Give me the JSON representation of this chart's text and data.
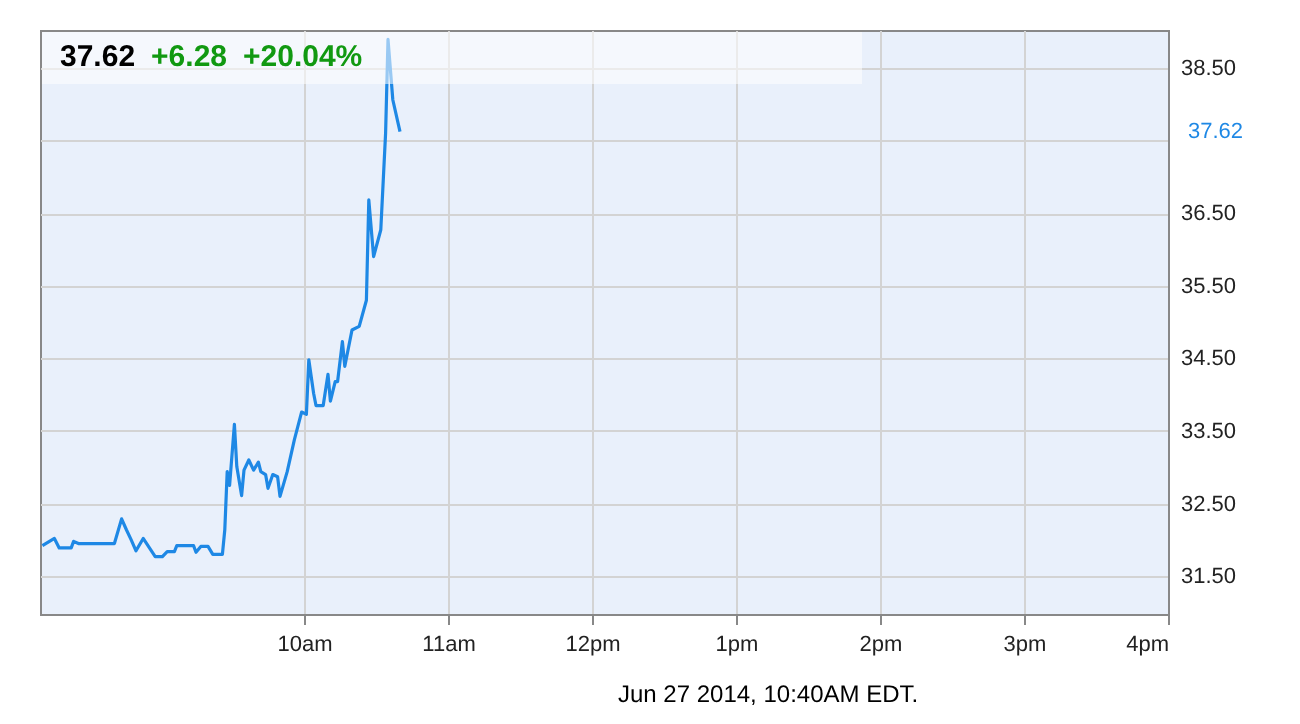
{
  "chart_data": {
    "type": "line",
    "title": "37.62",
    "annotations": [
      "+6.28",
      "+20.04%",
      "37.62",
      "Jun 27 2014, 10:40AM EDT."
    ],
    "x": [
      "2014-06-27T08:11",
      "2014-06-27T08:16",
      "2014-06-27T08:18",
      "2014-06-27T08:23",
      "2014-06-27T08:24",
      "2014-06-27T08:26",
      "2014-06-27T08:41",
      "2014-06-27T08:44",
      "2014-06-27T08:46",
      "2014-06-27T08:48",
      "2014-06-27T08:50",
      "2014-06-27T08:53",
      "2014-06-27T08:58",
      "2014-06-27T09:01",
      "2014-06-27T09:03",
      "2014-06-27T09:06",
      "2014-06-27T09:07",
      "2014-06-27T09:14",
      "2014-06-27T09:15",
      "2014-06-27T09:17",
      "2014-06-27T09:20",
      "2014-06-27T09:22",
      "2014-06-27T09:26",
      "2014-06-27T09:27",
      "2014-06-27T09:28",
      "2014-06-27T09:29",
      "2014-06-27T09:31",
      "2014-06-27T09:32",
      "2014-06-27T09:34",
      "2014-06-27T09:35",
      "2014-06-27T09:37",
      "2014-06-27T09:39",
      "2014-06-27T09:41",
      "2014-06-27T09:42",
      "2014-06-27T09:44",
      "2014-06-27T09:45",
      "2014-06-27T09:47",
      "2014-06-27T09:49",
      "2014-06-27T09:50",
      "2014-06-27T09:53",
      "2014-06-27T09:56",
      "2014-06-27T09:59",
      "2014-06-27T10:01",
      "2014-06-27T10:02",
      "2014-06-27T10:04",
      "2014-06-27T10:05",
      "2014-06-27T10:08",
      "2014-06-27T10:10",
      "2014-06-27T10:11",
      "2014-06-27T10:13",
      "2014-06-27T10:14",
      "2014-06-27T10:16",
      "2014-06-27T10:17",
      "2014-06-27T10:20",
      "2014-06-27T10:23",
      "2014-06-27T10:26",
      "2014-06-27T10:27",
      "2014-06-27T10:29",
      "2014-06-27T10:32",
      "2014-06-27T10:34",
      "2014-06-27T10:35",
      "2014-06-27T10:37",
      "2014-06-27T10:40"
    ],
    "series": [
      {
        "color": "#1e88e5",
        "values": [
          31.92,
          32.02,
          31.89,
          31.89,
          31.98,
          31.95,
          31.95,
          32.29,
          32.14,
          32.0,
          31.85,
          32.02,
          31.77,
          31.77,
          31.84,
          31.84,
          31.92,
          31.92,
          31.83,
          31.91,
          31.91,
          31.8,
          31.8,
          32.14,
          32.94,
          32.75,
          33.59,
          33.01,
          32.61,
          32.96,
          33.1,
          32.96,
          33.07,
          32.94,
          32.9,
          32.71,
          32.9,
          32.87,
          32.6,
          32.94,
          33.38,
          33.76,
          33.73,
          34.48,
          34.02,
          33.85,
          33.85,
          34.28,
          33.91,
          34.18,
          34.18,
          34.73,
          34.39,
          34.89,
          34.94,
          35.3,
          36.68,
          35.9,
          36.27,
          37.6,
          38.89,
          38.06,
          37.62
        ]
      }
    ],
    "xlim": [
      "2014-06-27T08:10",
      "2014-06-27T16:00"
    ],
    "xticks": [
      {
        "value": "2014-06-27T10:00",
        "label": "10am"
      },
      {
        "value": "2014-06-27T11:00",
        "label": "11am"
      },
      {
        "value": "2014-06-27T12:00",
        "label": "12pm"
      },
      {
        "value": "2014-06-27T13:00",
        "label": "1pm"
      },
      {
        "value": "2014-06-27T14:00",
        "label": "2pm"
      },
      {
        "value": "2014-06-27T15:00",
        "label": "3pm"
      },
      {
        "value": "2014-06-27T16:00",
        "label": "4pm"
      }
    ],
    "ylim": [
      30.98,
      39.02
    ],
    "yticks": [
      {
        "value": 31.5,
        "label": "31.50"
      },
      {
        "value": 32.5,
        "label": "32.50"
      },
      {
        "value": 33.5,
        "label": "33.50"
      },
      {
        "value": 34.5,
        "label": "34.50"
      },
      {
        "value": 35.5,
        "label": "35.50"
      },
      {
        "value": 36.5,
        "label": "36.50"
      },
      {
        "value": 37.5,
        "label": null
      },
      {
        "value": 38.5,
        "label": "38.50"
      }
    ],
    "grid": true,
    "marker": "none",
    "line_style": "solid"
  }
}
